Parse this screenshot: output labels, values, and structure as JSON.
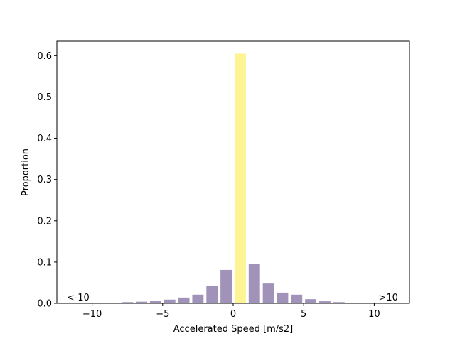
{
  "chart_data": {
    "type": "bar",
    "xlabel": "Accelerated Speed [m/s2]",
    "ylabel": "Proportion",
    "xlim": [
      -12.5,
      12.5
    ],
    "ylim": [
      0,
      0.635
    ],
    "x_ticks": [
      -10,
      -5,
      0,
      5,
      10
    ],
    "x_tick_labels": [
      "−10",
      "−5",
      "0",
      "5",
      "10"
    ],
    "y_ticks": [
      0.0,
      0.1,
      0.2,
      0.3,
      0.4,
      0.5,
      0.6
    ],
    "y_tick_labels": [
      "0.0",
      "0.1",
      "0.2",
      "0.3",
      "0.4",
      "0.5",
      "0.6"
    ],
    "grid": false,
    "bars": [
      {
        "x": -11,
        "value": 0.001,
        "color": "#8c7aa9"
      },
      {
        "x": -7.5,
        "value": 0.003,
        "color": "#8c7aa9"
      },
      {
        "x": -6.5,
        "value": 0.004,
        "color": "#8c7aa9"
      },
      {
        "x": -5.5,
        "value": 0.006,
        "color": "#8c7aa9"
      },
      {
        "x": -4.5,
        "value": 0.009,
        "color": "#8c7aa9"
      },
      {
        "x": -3.5,
        "value": 0.014,
        "color": "#8c7aa9"
      },
      {
        "x": -2.5,
        "value": 0.021,
        "color": "#8c7aa9"
      },
      {
        "x": -1.5,
        "value": 0.043,
        "color": "#8c7aa9"
      },
      {
        "x": -0.5,
        "value": 0.081,
        "color": "#8c7aa9"
      },
      {
        "x": 0.5,
        "value": 0.605,
        "color": "#fdf17c"
      },
      {
        "x": 1.5,
        "value": 0.095,
        "color": "#8c7aa9"
      },
      {
        "x": 2.5,
        "value": 0.048,
        "color": "#8c7aa9"
      },
      {
        "x": 3.5,
        "value": 0.026,
        "color": "#8c7aa9"
      },
      {
        "x": 4.5,
        "value": 0.021,
        "color": "#8c7aa9"
      },
      {
        "x": 5.5,
        "value": 0.01,
        "color": "#8c7aa9"
      },
      {
        "x": 6.5,
        "value": 0.005,
        "color": "#8c7aa9"
      },
      {
        "x": 7.5,
        "value": 0.003,
        "color": "#8c7aa9"
      },
      {
        "x": 11,
        "value": 0.001,
        "color": "#8c7aa9"
      }
    ],
    "bar_width": 0.8,
    "annotations": [
      {
        "text": "<-10",
        "x": -11,
        "y": 0.009
      },
      {
        "text": ">10",
        "x": 11,
        "y": 0.009
      }
    ]
  }
}
